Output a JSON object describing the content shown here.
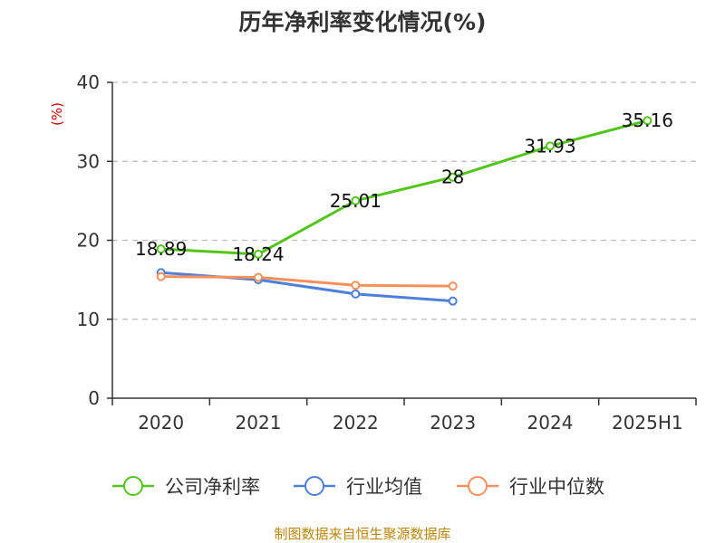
{
  "chart_data": {
    "type": "line",
    "title": "历年净利率变化情况(%)",
    "unit_label": "(%)",
    "categories": [
      "2020",
      "2021",
      "2022",
      "2023",
      "2024",
      "2025H1"
    ],
    "ylim": [
      0,
      40
    ],
    "yticks": [
      0,
      10,
      20,
      30,
      40
    ],
    "grid": true,
    "legend_position": "bottom",
    "series": [
      {
        "name": "公司净利率",
        "color": "#52c41a",
        "values": [
          18.89,
          18.24,
          25.01,
          28,
          31.93,
          35.16
        ],
        "labels": [
          "18.89",
          "18.24",
          "25.01",
          "28",
          "31.93",
          "35.16"
        ]
      },
      {
        "name": "行业均值",
        "color": "#4e7fd9",
        "values": [
          15.9,
          15.0,
          13.2,
          12.3,
          null,
          null
        ]
      },
      {
        "name": "行业中位数",
        "color": "#f5905a",
        "values": [
          15.4,
          15.3,
          14.3,
          14.2,
          null,
          null
        ]
      }
    ]
  },
  "source": "制图数据来自恒生聚源数据库"
}
